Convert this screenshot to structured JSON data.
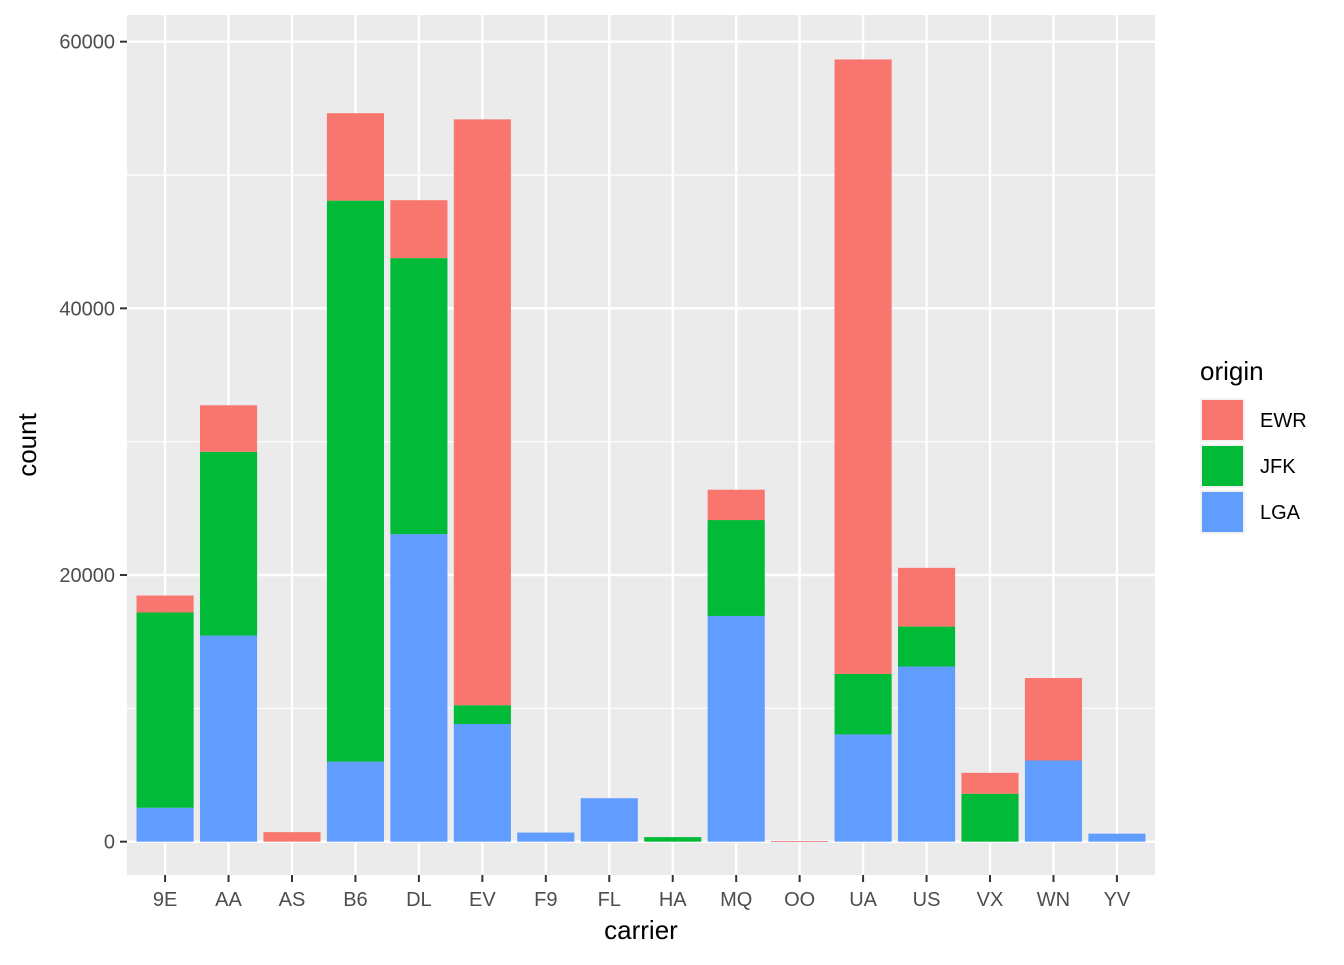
{
  "chart_data": {
    "type": "bar",
    "stacked": true,
    "title": "",
    "xlabel": "carrier",
    "ylabel": "count",
    "ylim": [
      -2500,
      62000
    ],
    "y_ticks": [
      0,
      20000,
      40000,
      60000
    ],
    "y_tick_labels": [
      "0",
      "20000",
      "40000",
      "60000"
    ],
    "grid": true,
    "categories": [
      "9E",
      "AA",
      "AS",
      "B6",
      "DL",
      "EV",
      "F9",
      "FL",
      "HA",
      "MQ",
      "OO",
      "UA",
      "US",
      "VX",
      "WN",
      "YV"
    ],
    "series": [
      {
        "name": "LGA",
        "color": "#619CFF",
        "values": [
          2541,
          15459,
          0,
          6002,
          23067,
          8826,
          685,
          3260,
          0,
          16928,
          26,
          8044,
          13136,
          0,
          6087,
          601
        ]
      },
      {
        "name": "JFK",
        "color": "#00BA38",
        "values": [
          14651,
          13783,
          0,
          42076,
          20701,
          1408,
          0,
          0,
          342,
          7193,
          0,
          4534,
          2995,
          3596,
          0,
          0
        ]
      },
      {
        "name": "EWR",
        "color": "#F8766D",
        "values": [
          1268,
          3487,
          714,
          6557,
          4342,
          43939,
          0,
          0,
          0,
          2276,
          6,
          46087,
          4405,
          1566,
          6188,
          0
        ]
      }
    ],
    "legend": {
      "title": "origin",
      "position": "right",
      "entries": [
        {
          "label": "EWR",
          "color": "#F8766D"
        },
        {
          "label": "JFK",
          "color": "#00BA38"
        },
        {
          "label": "LGA",
          "color": "#619CFF"
        }
      ]
    }
  }
}
